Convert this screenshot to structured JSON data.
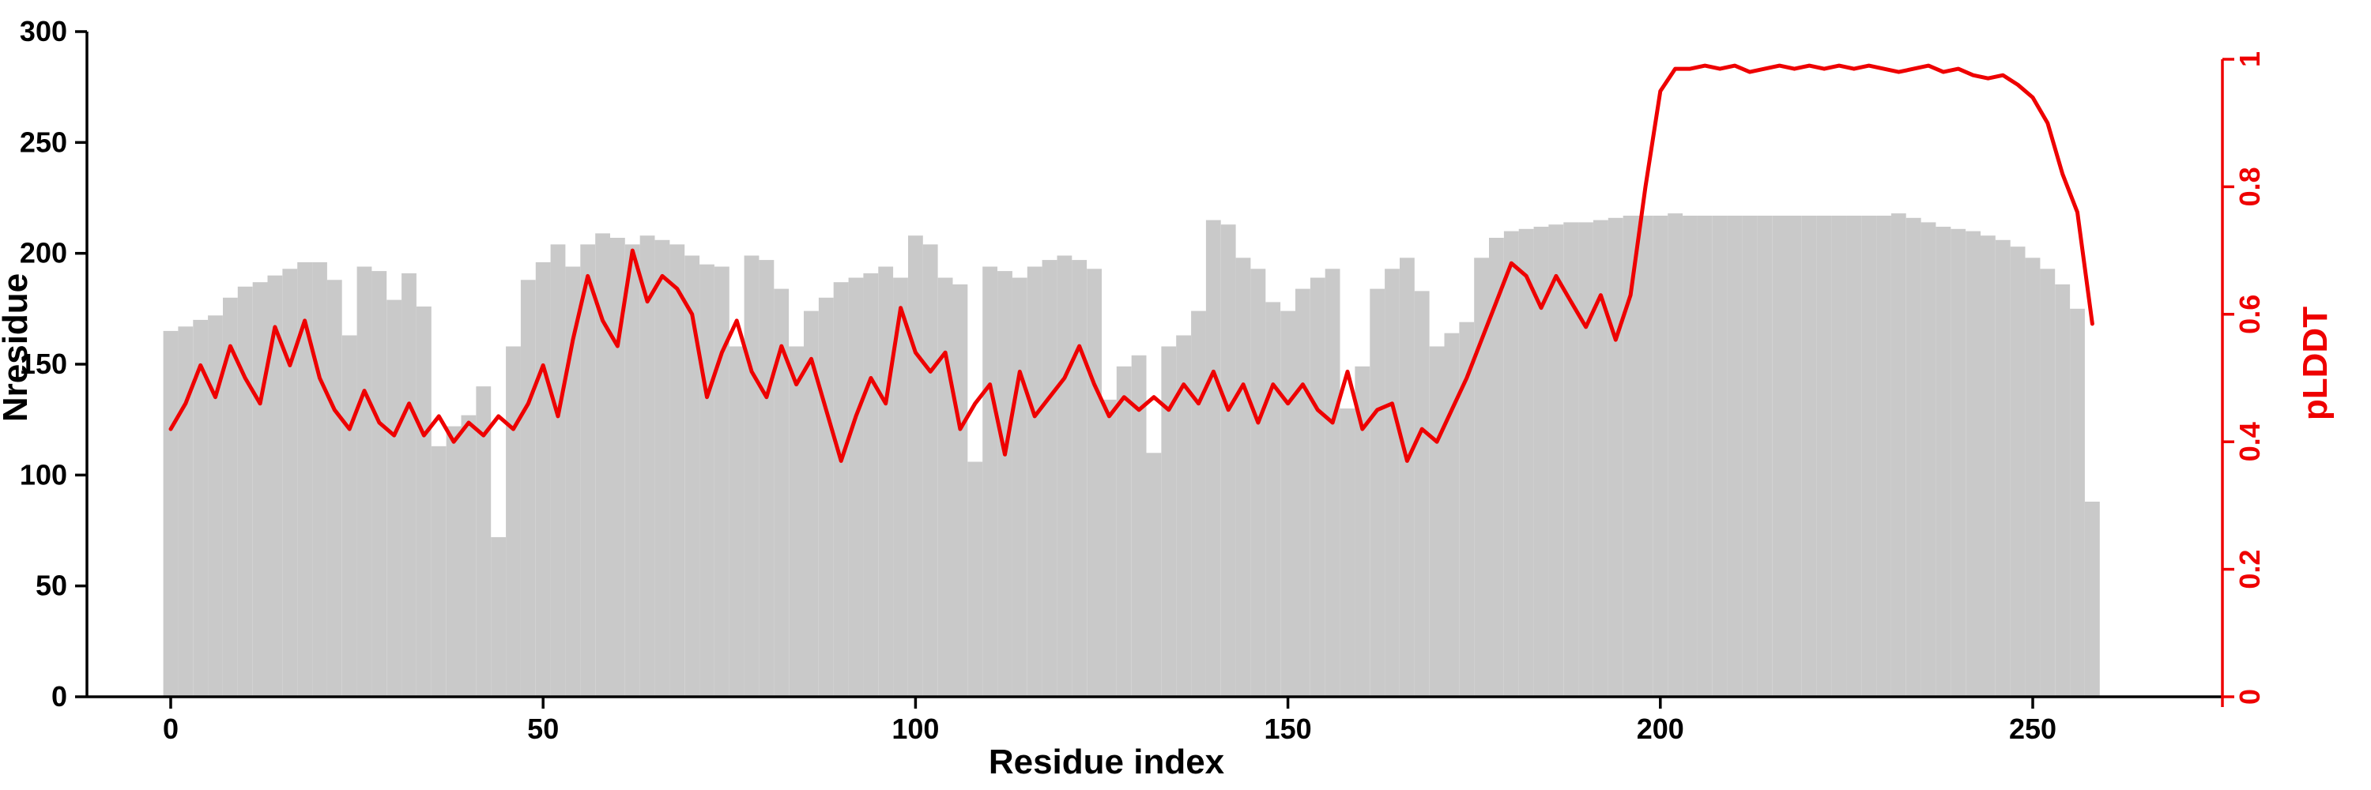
{
  "chart_data": {
    "type": "bar",
    "title": "",
    "xlabel": "Residue index",
    "ylabel_left": "Nresidue",
    "ylabel_right": "pLDDT",
    "x_range": [
      0,
      265
    ],
    "y_left_range": [
      0,
      300
    ],
    "y_right_range": [
      0,
      1
    ],
    "x_ticks": [
      0,
      50,
      100,
      150,
      200,
      250
    ],
    "y_left_ticks": [
      0,
      50,
      100,
      150,
      200,
      250,
      300
    ],
    "y_right_ticks": [
      0,
      0.2,
      0.4,
      0.6,
      0.8,
      1
    ],
    "grid": false,
    "legend": "none",
    "colors": {
      "bar": "#c9c9c9",
      "line": "#ee0000",
      "axis": "#000000"
    },
    "x": [
      0,
      2,
      4,
      6,
      8,
      10,
      12,
      14,
      16,
      18,
      20,
      22,
      24,
      26,
      28,
      30,
      32,
      34,
      36,
      38,
      40,
      42,
      44,
      46,
      48,
      50,
      52,
      54,
      56,
      58,
      60,
      62,
      64,
      66,
      68,
      70,
      72,
      74,
      76,
      78,
      80,
      82,
      84,
      86,
      88,
      90,
      92,
      94,
      96,
      98,
      100,
      102,
      104,
      106,
      108,
      110,
      112,
      114,
      116,
      118,
      120,
      122,
      124,
      126,
      128,
      130,
      132,
      134,
      136,
      138,
      140,
      142,
      144,
      146,
      148,
      150,
      152,
      154,
      156,
      158,
      160,
      162,
      164,
      166,
      168,
      170,
      172,
      174,
      176,
      178,
      180,
      182,
      184,
      186,
      188,
      190,
      192,
      194,
      196,
      198,
      200,
      202,
      204,
      206,
      208,
      210,
      212,
      214,
      216,
      218,
      220,
      222,
      224,
      226,
      228,
      230,
      232,
      234,
      236,
      238,
      240,
      242,
      244,
      246,
      248,
      250,
      252,
      254,
      256,
      258
    ],
    "series": [
      {
        "name": "Nresidue",
        "type": "bar",
        "axis": "left",
        "values": [
          165,
          167,
          170,
          172,
          180,
          185,
          187,
          190,
          193,
          196,
          196,
          188,
          163,
          194,
          192,
          179,
          191,
          176,
          113,
          122,
          127,
          140,
          72,
          158,
          188,
          196,
          204,
          194,
          204,
          209,
          207,
          204,
          208,
          206,
          204,
          199,
          195,
          194,
          158,
          199,
          197,
          184,
          158,
          174,
          180,
          187,
          189,
          191,
          194,
          189,
          208,
          204,
          189,
          186,
          106,
          194,
          192,
          189,
          194,
          197,
          199,
          197,
          193,
          134,
          149,
          154,
          110,
          158,
          163,
          174,
          215,
          213,
          198,
          193,
          178,
          174,
          184,
          189,
          193,
          130,
          149,
          184,
          193,
          198,
          183,
          158,
          164,
          169,
          198,
          207,
          210,
          211,
          212,
          213,
          214,
          214,
          215,
          216,
          217,
          217,
          217,
          218,
          217,
          217,
          217,
          217,
          217,
          217,
          217,
          217,
          217,
          217,
          217,
          217,
          217,
          217,
          218,
          216,
          214,
          212,
          211,
          210,
          208,
          206,
          203,
          198,
          193,
          186,
          175,
          88
        ]
      },
      {
        "name": "pLDDT",
        "type": "line",
        "axis": "right",
        "values": [
          0.42,
          0.46,
          0.52,
          0.47,
          0.55,
          0.5,
          0.46,
          0.58,
          0.52,
          0.59,
          0.5,
          0.45,
          0.42,
          0.48,
          0.43,
          0.41,
          0.46,
          0.41,
          0.44,
          0.4,
          0.43,
          0.41,
          0.44,
          0.42,
          0.46,
          0.52,
          0.44,
          0.56,
          0.66,
          0.59,
          0.55,
          0.7,
          0.62,
          0.66,
          0.64,
          0.6,
          0.47,
          0.54,
          0.59,
          0.51,
          0.47,
          0.55,
          0.49,
          0.53,
          0.45,
          0.37,
          0.44,
          0.5,
          0.46,
          0.61,
          0.54,
          0.51,
          0.54,
          0.42,
          0.46,
          0.49,
          0.38,
          0.51,
          0.44,
          0.47,
          0.5,
          0.55,
          0.49,
          0.44,
          0.47,
          0.45,
          0.47,
          0.45,
          0.49,
          0.46,
          0.51,
          0.45,
          0.49,
          0.43,
          0.49,
          0.46,
          0.49,
          0.45,
          0.43,
          0.51,
          0.42,
          0.45,
          0.46,
          0.37,
          0.42,
          0.4,
          0.45,
          0.5,
          0.56,
          0.62,
          0.68,
          0.66,
          0.61,
          0.66,
          0.62,
          0.58,
          0.63,
          0.56,
          0.63,
          0.8,
          0.95,
          0.985,
          0.985,
          0.99,
          0.985,
          0.99,
          0.98,
          0.985,
          0.99,
          0.985,
          0.99,
          0.985,
          0.99,
          0.985,
          0.99,
          0.985,
          0.98,
          0.985,
          0.99,
          0.98,
          0.985,
          0.975,
          0.97,
          0.975,
          0.96,
          0.94,
          0.9,
          0.82,
          0.76,
          0.585
        ]
      }
    ]
  }
}
